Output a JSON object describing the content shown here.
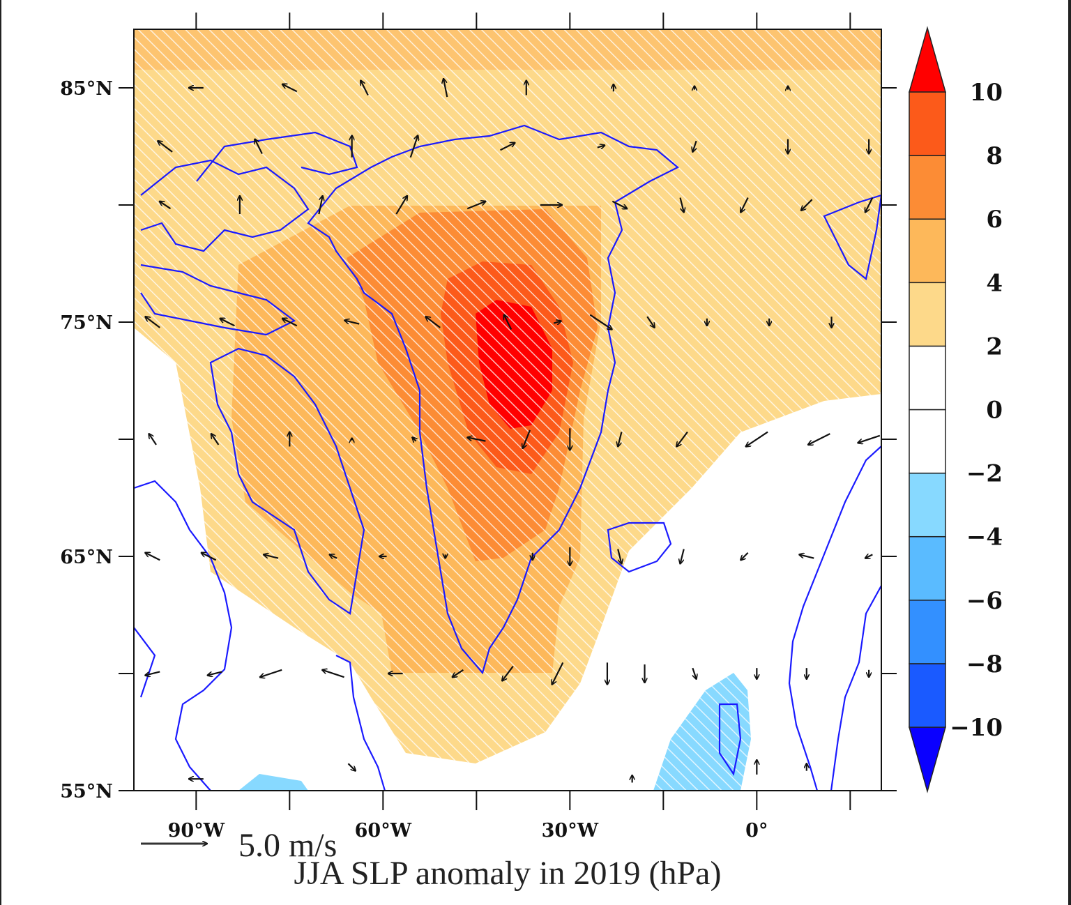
{
  "chart_data": {
    "type": "map-contour-vector",
    "title": "JJA SLP anomaly in 2019 (hPa)",
    "vector_reference": {
      "value": 5.0,
      "label": "5.0 m/s"
    },
    "lon_range": [
      -100,
      20
    ],
    "lat_range": [
      55,
      87.5
    ],
    "x_ticks": [
      {
        "value": -90,
        "label": "90°W"
      },
      {
        "value": -60,
        "label": "60°W"
      },
      {
        "value": -30,
        "label": "30°W"
      },
      {
        "value": 0,
        "label": "0°"
      }
    ],
    "x_minor_ticks": [
      -75,
      -45,
      -15,
      15
    ],
    "y_ticks": [
      {
        "value": 85,
        "label": "85°N"
      },
      {
        "value": 75,
        "label": "75°N"
      },
      {
        "value": 65,
        "label": "65°N"
      },
      {
        "value": 55,
        "label": "55°N"
      }
    ],
    "y_minor_ticks": [
      80,
      70,
      60
    ],
    "colorbar": {
      "levels": [
        -10,
        -8,
        -6,
        -4,
        -2,
        0,
        2,
        4,
        6,
        8,
        10
      ],
      "labels": [
        "−10",
        "−8",
        "−6",
        "−4",
        "−2",
        "0",
        "2",
        "4",
        "6",
        "8",
        "10"
      ],
      "colors": [
        "#0a00ff",
        "#1a5aff",
        "#3390ff",
        "#5abbff",
        "#87d9ff",
        "#ffffff",
        "#ffffff",
        "#fdd98a",
        "#fdb85a",
        "#fc8c35",
        "#fc5a1a",
        "#ff0000"
      ]
    },
    "anomaly_maximum_hpa": ">10",
    "anomaly_maximum_location": {
      "lon": -38,
      "lat": 73
    },
    "significance": "hatched",
    "wind_vectors_lon_lat_u_v": [
      [
        -90,
        85,
        -2,
        0
      ],
      [
        -75,
        85,
        -2,
        1
      ],
      [
        -63,
        85,
        -1,
        2
      ],
      [
        -50,
        85,
        -0.5,
        2.5
      ],
      [
        -37,
        85,
        0,
        2
      ],
      [
        -23,
        85,
        0,
        1
      ],
      [
        -10,
        85,
        0,
        0.5
      ],
      [
        5,
        85,
        0,
        0.5
      ],
      [
        -95,
        82.5,
        -2,
        1.5
      ],
      [
        -80,
        82.5,
        -1,
        2
      ],
      [
        -65,
        82.5,
        0,
        3
      ],
      [
        -55,
        82.5,
        1,
        3
      ],
      [
        -40,
        82.5,
        2,
        1
      ],
      [
        -25,
        82.5,
        1,
        0.3
      ],
      [
        -10,
        82.5,
        -0.5,
        -1.5
      ],
      [
        5,
        82.5,
        0,
        -2
      ],
      [
        18,
        82.5,
        0,
        -2
      ],
      [
        -95,
        80,
        -1.5,
        1
      ],
      [
        -83,
        80,
        0,
        2.5
      ],
      [
        -70,
        80,
        0.5,
        2.5
      ],
      [
        -57,
        80,
        1.5,
        2.5
      ],
      [
        -45,
        80,
        2.5,
        1
      ],
      [
        -33,
        80,
        3,
        0
      ],
      [
        -22,
        80,
        2,
        -1
      ],
      [
        -12,
        80,
        0.5,
        -2
      ],
      [
        -2,
        80,
        -1,
        -2
      ],
      [
        8,
        80,
        -1.5,
        -1.5
      ],
      [
        18,
        80,
        -1,
        -2
      ],
      [
        -97,
        75,
        -2,
        1.5
      ],
      [
        -85,
        75,
        -2,
        1
      ],
      [
        -75,
        75,
        -2,
        1
      ],
      [
        -65,
        75,
        -2,
        0.5
      ],
      [
        -52,
        75,
        -2,
        1.5
      ],
      [
        -40,
        75,
        -1,
        2
      ],
      [
        -32,
        75,
        1,
        0.3
      ],
      [
        -25,
        75,
        3,
        -2
      ],
      [
        -17,
        75,
        1,
        -1.5
      ],
      [
        -8,
        75,
        0,
        -1
      ],
      [
        2,
        75,
        0,
        -1
      ],
      [
        12,
        75,
        0,
        -1.5
      ],
      [
        -97,
        70,
        -1,
        1.5
      ],
      [
        -87,
        70,
        -1,
        1.5
      ],
      [
        -75,
        70,
        0,
        2
      ],
      [
        -65,
        70,
        0,
        0.3
      ],
      [
        -55,
        70,
        -0.5,
        0.5
      ],
      [
        -45,
        70,
        -2.5,
        0.5
      ],
      [
        -37,
        70,
        -1,
        -2.5
      ],
      [
        -30,
        70,
        0,
        -3
      ],
      [
        -22,
        70,
        -0.5,
        -2
      ],
      [
        -12,
        70,
        -1.5,
        -2
      ],
      [
        0,
        70,
        -3,
        -2
      ],
      [
        10,
        70,
        -3,
        -1.5
      ],
      [
        18,
        70,
        -3,
        -1
      ],
      [
        -97,
        65,
        -2,
        1
      ],
      [
        -88,
        65,
        -2,
        1
      ],
      [
        -78,
        65,
        -2,
        0.5
      ],
      [
        -68,
        65,
        -1,
        0.5
      ],
      [
        -60,
        65,
        -1,
        0
      ],
      [
        -50,
        65,
        0,
        -0.5
      ],
      [
        -36,
        65,
        0,
        -1
      ],
      [
        -30,
        65,
        0,
        -2.5
      ],
      [
        -22,
        65,
        0.5,
        -2
      ],
      [
        -12,
        65,
        -0.5,
        -2
      ],
      [
        -2,
        65,
        -1,
        -1
      ],
      [
        8,
        65,
        -2,
        0.5
      ],
      [
        18,
        65,
        -1,
        -0.5
      ],
      [
        -97,
        60,
        -2,
        -0.5
      ],
      [
        -87,
        60,
        -2,
        -0.5
      ],
      [
        -78,
        60,
        -3,
        -1
      ],
      [
        -68,
        60,
        -3,
        1
      ],
      [
        -58,
        60,
        -2,
        0
      ],
      [
        -48,
        60,
        -1.5,
        -1
      ],
      [
        -40,
        60,
        -1.5,
        -2
      ],
      [
        -32,
        60,
        -1.5,
        -3
      ],
      [
        -24,
        60,
        0,
        -3
      ],
      [
        -18,
        60,
        0,
        -2.5
      ],
      [
        -10,
        60,
        0.5,
        -1.5
      ],
      [
        0,
        60,
        0,
        -1.5
      ],
      [
        8,
        60,
        0,
        -1.5
      ],
      [
        18,
        60,
        0,
        -1
      ],
      [
        -90,
        55.5,
        -2,
        0
      ],
      [
        -65,
        56,
        1,
        -1
      ],
      [
        -20,
        55.5,
        0,
        1
      ],
      [
        0,
        56,
        0,
        2
      ],
      [
        8,
        56,
        0,
        1
      ]
    ]
  }
}
